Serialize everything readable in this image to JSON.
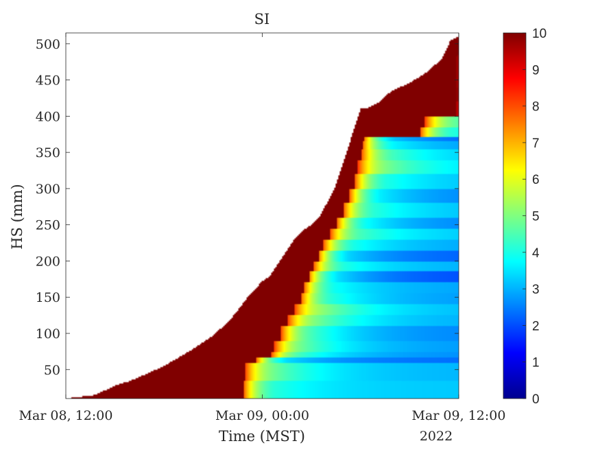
{
  "chart_data": {
    "type": "heatmap",
    "title": "SI",
    "xlabel": "Time (MST)",
    "ylabel": "HS (mm)",
    "x_tick_labels": [
      "Mar 08, 12:00",
      "Mar 09, 00:00",
      "Mar 09, 12:00"
    ],
    "x_ticks_hours": [
      0,
      12,
      24
    ],
    "x_year_label": "2022",
    "xlim_hours": [
      0,
      24
    ],
    "ylim": [
      10,
      515
    ],
    "y_ticks": [
      50,
      100,
      150,
      200,
      250,
      300,
      350,
      400,
      450,
      500
    ],
    "y_tick_labels": [
      "50",
      "100",
      "150",
      "200",
      "250",
      "300",
      "350",
      "400",
      "450",
      "500"
    ],
    "colorbar": {
      "colormap": "jet",
      "min": 0,
      "max": 10,
      "ticks": [
        0,
        1,
        2,
        3,
        4,
        5,
        6,
        7,
        8,
        9,
        10
      ],
      "tick_labels": [
        "0",
        "1",
        "2",
        "3",
        "4",
        "5",
        "6",
        "7",
        "8",
        "9",
        "10"
      ]
    },
    "snow_surface": {
      "note_units": "time in hours after Mar 08 12:00, height in mm",
      "time_hours": [
        0,
        1.8,
        3,
        4,
        5,
        6,
        7,
        8,
        9,
        10,
        10.5,
        11,
        11.5,
        12,
        12.5,
        13,
        13.5,
        14,
        14.5,
        15,
        15.5,
        16,
        16.5,
        17,
        17.5,
        18,
        18.5,
        18.8,
        19.2,
        19.5,
        20,
        21,
        22,
        23,
        23.5,
        24
      ],
      "height_mm": [
        10,
        15,
        28,
        35,
        45,
        55,
        68,
        82,
        97,
        118,
        132,
        147,
        160,
        172,
        180,
        198,
        215,
        232,
        243,
        250,
        262,
        282,
        305,
        340,
        375,
        410,
        412,
        415,
        420,
        428,
        436,
        446,
        460,
        480,
        505,
        510
      ]
    },
    "layers": [
      {
        "top_mm": 35,
        "time_deposited_hours": 10.5,
        "mid_si": 3.6,
        "final_si": 3.2
      },
      {
        "top_mm": 60,
        "time_deposited_hours": 10.6,
        "mid_si": 4.3,
        "final_si": 3.0
      },
      {
        "top_mm": 67,
        "time_deposited_hours": 11.3,
        "mid_si": 2.8,
        "final_si": 2.3
      },
      {
        "top_mm": 75,
        "time_deposited_hours": 12.2,
        "mid_si": 3.8,
        "final_si": 2.6
      },
      {
        "top_mm": 90,
        "time_deposited_hours": 12.4,
        "mid_si": 4.2,
        "final_si": 2.7
      },
      {
        "top_mm": 110,
        "time_deposited_hours": 12.8,
        "mid_si": 3.9,
        "final_si": 2.5
      },
      {
        "top_mm": 125,
        "time_deposited_hours": 13.2,
        "mid_si": 4.4,
        "final_si": 2.9
      },
      {
        "top_mm": 140,
        "time_deposited_hours": 13.6,
        "mid_si": 4.6,
        "final_si": 3.0
      },
      {
        "top_mm": 155,
        "time_deposited_hours": 14.0,
        "mid_si": 3.6,
        "final_si": 2.7
      },
      {
        "top_mm": 170,
        "time_deposited_hours": 14.2,
        "mid_si": 3.3,
        "final_si": 2.8
      },
      {
        "top_mm": 185,
        "time_deposited_hours": 14.5,
        "mid_si": 2.8,
        "final_si": 1.9
      },
      {
        "top_mm": 200,
        "time_deposited_hours": 14.8,
        "mid_si": 3.5,
        "final_si": 2.9
      },
      {
        "top_mm": 215,
        "time_deposited_hours": 15.1,
        "mid_si": 2.7,
        "final_si": 2.1
      },
      {
        "top_mm": 230,
        "time_deposited_hours": 15.4,
        "mid_si": 3.4,
        "final_si": 2.8
      },
      {
        "top_mm": 245,
        "time_deposited_hours": 15.8,
        "mid_si": 3.9,
        "final_si": 3.1
      },
      {
        "top_mm": 260,
        "time_deposited_hours": 16.2,
        "mid_si": 3.2,
        "final_si": 2.4
      },
      {
        "top_mm": 280,
        "time_deposited_hours": 16.6,
        "mid_si": 3.6,
        "final_si": 3.0
      },
      {
        "top_mm": 300,
        "time_deposited_hours": 17.0,
        "mid_si": 3.0,
        "final_si": 2.4
      },
      {
        "top_mm": 320,
        "time_deposited_hours": 17.3,
        "mid_si": 3.5,
        "final_si": 3.0
      },
      {
        "top_mm": 340,
        "time_deposited_hours": 17.5,
        "mid_si": 4.4,
        "final_si": 3.2
      },
      {
        "top_mm": 355,
        "time_deposited_hours": 17.7,
        "mid_si": 3.9,
        "final_si": 3.0
      },
      {
        "top_mm": 365,
        "time_deposited_hours": 17.8,
        "mid_si": 3.1,
        "final_si": 2.6
      },
      {
        "top_mm": 372,
        "time_deposited_hours": 17.9,
        "mid_si": 2.5,
        "final_si": 2.0
      },
      {
        "top_mm": 385,
        "time_deposited_hours": 21.3,
        "mid_si": 3.6,
        "final_si": 3.1
      },
      {
        "top_mm": 400,
        "time_deposited_hours": 21.6,
        "mid_si": 4.2,
        "final_si": 3.4
      },
      {
        "top_mm": 420,
        "time_deposited_hours": 23.5,
        "mid_si": 8.5,
        "final_si": 8.5
      },
      {
        "top_mm": 440,
        "time_deposited_hours": 23.5,
        "mid_si": 9.5,
        "final_si": 9.5
      },
      {
        "top_mm": 458,
        "time_deposited_hours": 23.5,
        "mid_si": 9.2,
        "final_si": 9.2
      }
    ]
  }
}
